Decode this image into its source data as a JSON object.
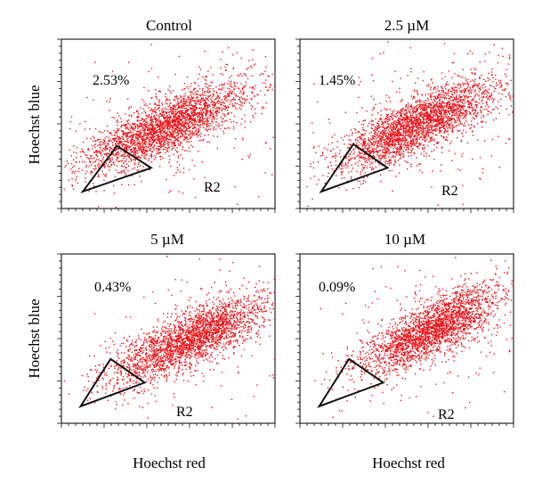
{
  "figure": {
    "x_axis_label": "Hoechst red",
    "y_axis_label": "Hoechst blue"
  },
  "chart_data": [
    {
      "type": "scatter",
      "title": "Control",
      "xlabel": "",
      "ylabel": "Hoechst blue",
      "annotation": "2.53%",
      "gate_label": "R2",
      "point_color": "#e8151b",
      "population": {
        "center": [
          0.48,
          0.48
        ],
        "spread_major": 0.22,
        "spread_minor": 0.07,
        "angle_deg": 32,
        "n": 2600,
        "sparse_n": 260
      },
      "gate_triangle": [
        [
          0.1,
          0.1
        ],
        [
          0.26,
          0.37
        ],
        [
          0.42,
          0.24
        ]
      ]
    },
    {
      "type": "scatter",
      "title": "2.5 µM",
      "xlabel": "",
      "ylabel": "",
      "annotation": "1.45%",
      "gate_label": "R2",
      "point_color": "#e8151b",
      "population": {
        "center": [
          0.55,
          0.5
        ],
        "spread_major": 0.21,
        "spread_minor": 0.07,
        "angle_deg": 33,
        "n": 2600,
        "sparse_n": 260
      },
      "gate_triangle": [
        [
          0.1,
          0.1
        ],
        [
          0.25,
          0.38
        ],
        [
          0.41,
          0.24
        ]
      ]
    },
    {
      "type": "scatter",
      "title": "5 µM",
      "xlabel": "Hoechst red",
      "ylabel": "Hoechst blue",
      "annotation": "0.43%",
      "gate_label": "R2",
      "point_color": "#e8151b",
      "population": {
        "center": [
          0.6,
          0.5
        ],
        "spread_major": 0.21,
        "spread_minor": 0.07,
        "angle_deg": 32,
        "n": 2500,
        "sparse_n": 240
      },
      "gate_triangle": [
        [
          0.09,
          0.1
        ],
        [
          0.23,
          0.38
        ],
        [
          0.39,
          0.24
        ]
      ]
    },
    {
      "type": "scatter",
      "title": "10 µM",
      "xlabel": "Hoechst red",
      "ylabel": "",
      "annotation": "0.09%",
      "gate_label": "R2",
      "point_color": "#e8151b",
      "population": {
        "center": [
          0.62,
          0.56
        ],
        "spread_major": 0.2,
        "spread_minor": 0.07,
        "angle_deg": 36,
        "n": 2400,
        "sparse_n": 230
      },
      "gate_triangle": [
        [
          0.09,
          0.1
        ],
        [
          0.23,
          0.38
        ],
        [
          0.39,
          0.24
        ]
      ]
    }
  ]
}
